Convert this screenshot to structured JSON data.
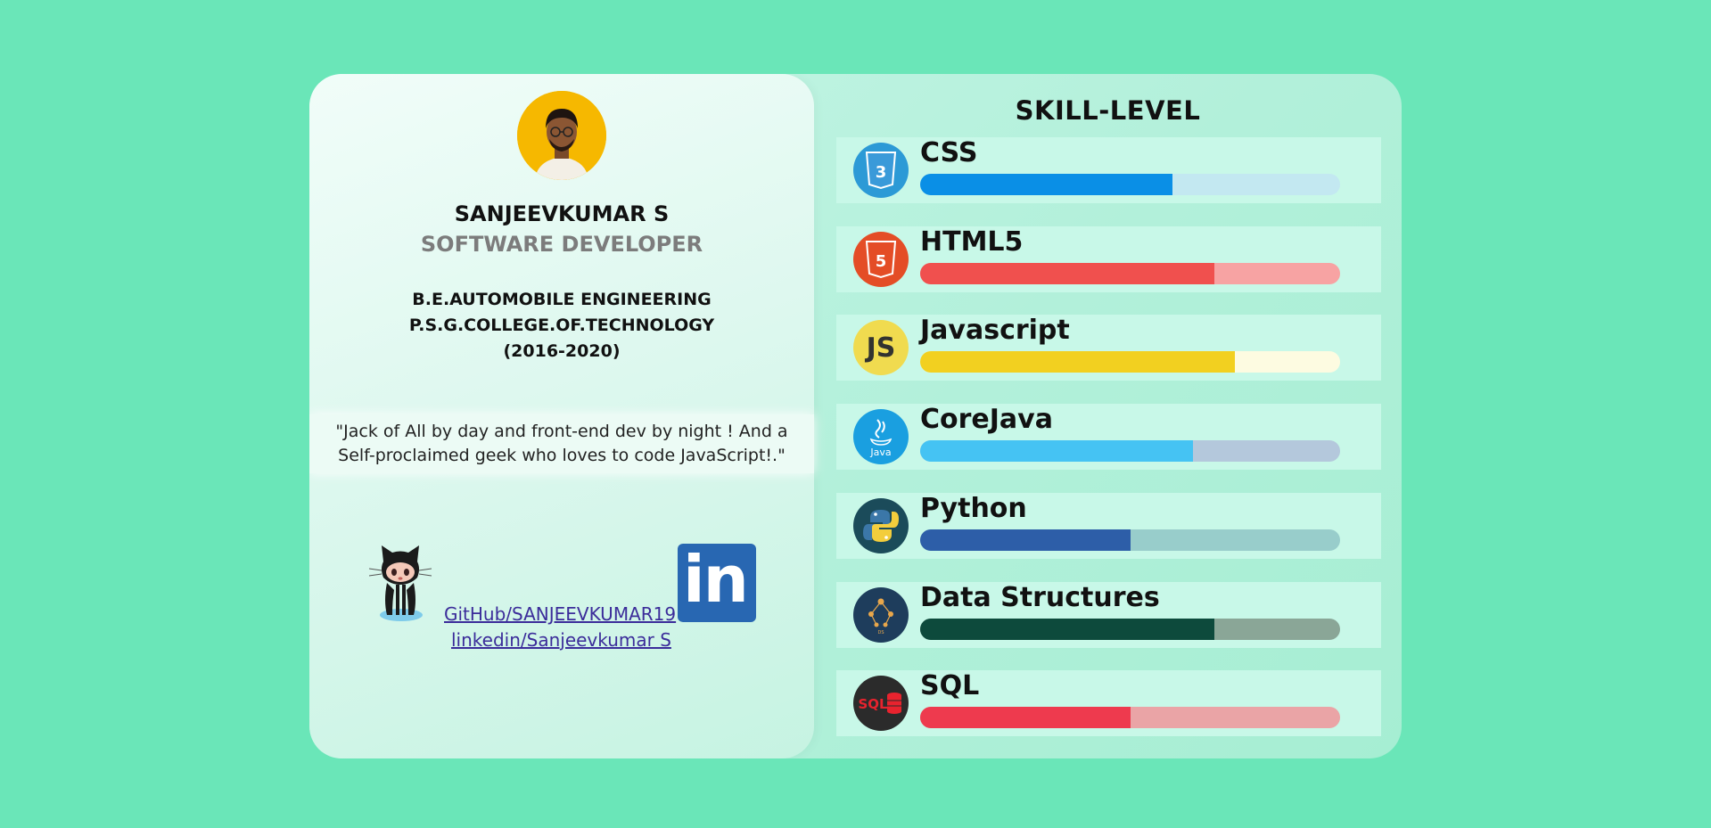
{
  "profile": {
    "name": "SANJEEVKUMAR S",
    "role": "SOFTWARE DEVELOPER",
    "education_line1": "B.E.AUTOMOBILE ENGINEERING",
    "education_line2": "P.S.G.COLLEGE.OF.TECHNOLOGY",
    "education_line3": "(2016-2020)",
    "quote": "\"Jack of All by day and front-end dev by night ! And a Self-proclaimed geek who loves to code JavaScript!.\""
  },
  "links": {
    "github_label": " GitHub/SANJEEVKUMAR19",
    "linkedin_label": "linkedin/Sanjeevkumar S",
    "linkedin_logo_text": "in"
  },
  "skills_title": "SKILL-LEVEL",
  "skills": [
    {
      "label": "CSS",
      "level": 0.6,
      "icon": "css3-icon",
      "fill_color": "#0a8fe6",
      "track_color": "#c3e8f1",
      "icon_text": "3"
    },
    {
      "label": "HTML5",
      "level": 0.7,
      "icon": "html5-icon",
      "fill_color": "#f0504e",
      "track_color": "#f7a3a3",
      "icon_text": "5"
    },
    {
      "label": "Javascript",
      "level": 0.75,
      "icon": "javascript-icon",
      "fill_color": "#f2d020",
      "track_color": "#fdfbe1",
      "icon_text": "JS"
    },
    {
      "label": "CoreJava",
      "level": 0.65,
      "icon": "java-icon",
      "fill_color": "#45c3f3",
      "track_color": "#b4c8dc",
      "icon_text": "Java"
    },
    {
      "label": "Python",
      "level": 0.5,
      "icon": "python-icon",
      "fill_color": "#2d5ea8",
      "track_color": "#98cdcb",
      "icon_text": "Py"
    },
    {
      "label": "Data Structures",
      "level": 0.7,
      "icon": "data-structures-icon",
      "fill_color": "#0d4a3c",
      "track_color": "#8aa697",
      "icon_text": "DS"
    },
    {
      "label": "SQL",
      "level": 0.5,
      "icon": "sql-icon",
      "fill_color": "#ee3a4e",
      "track_color": "#eaa4a6",
      "icon_text": "SQL"
    }
  ]
}
